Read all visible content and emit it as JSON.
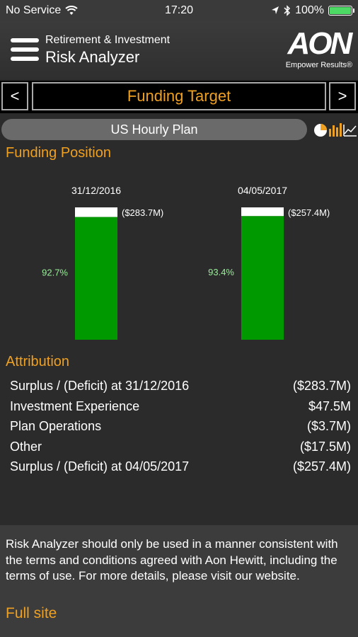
{
  "status_bar": {
    "carrier": "No Service",
    "time": "17:20",
    "battery": "100%"
  },
  "header": {
    "title_small": "Retirement & Investment",
    "title_large": "Risk Analyzer",
    "logo_text": "AON",
    "logo_tagline": "Empower Results®"
  },
  "nav": {
    "prev": "<",
    "next": ">",
    "title": "Funding Target"
  },
  "plan": {
    "name": "US Hourly Plan"
  },
  "funding_position": {
    "title": "Funding Position"
  },
  "chart_data": {
    "type": "bar",
    "stacked": true,
    "categories": [
      "31/12/2016",
      "04/05/2017"
    ],
    "series": [
      {
        "values": [
          92.7,
          93.4
        ]
      },
      {
        "values": [
          7.3,
          6.6
        ]
      }
    ],
    "funded_labels": [
      "92.7%",
      "93.4%"
    ],
    "deficit_labels": [
      "($283.7M)",
      "($257.4M)"
    ],
    "colors": {
      "funded": "#009900",
      "deficit": "#ffffff"
    },
    "ylim": [
      0,
      100
    ]
  },
  "attribution": {
    "title": "Attribution",
    "rows": [
      {
        "label": "Surplus / (Deficit) at 31/12/2016",
        "value": "($283.7M)"
      },
      {
        "label": "Investment Experience",
        "value": "$47.5M"
      },
      {
        "label": "Plan Operations",
        "value": "($3.7M)"
      },
      {
        "label": "Other",
        "value": "($17.5M)"
      },
      {
        "label": "Surplus / (Deficit) at 04/05/2017",
        "value": "($257.4M)"
      }
    ]
  },
  "disclaimer": {
    "text": "Risk Analyzer should only be used in a manner consistent with the terms and conditions agreed with Aon Hewitt, including the terms of use. For more details, please visit our website.",
    "link": "Full site"
  },
  "colors": {
    "accent": "#f0a020",
    "funded": "#009900"
  }
}
